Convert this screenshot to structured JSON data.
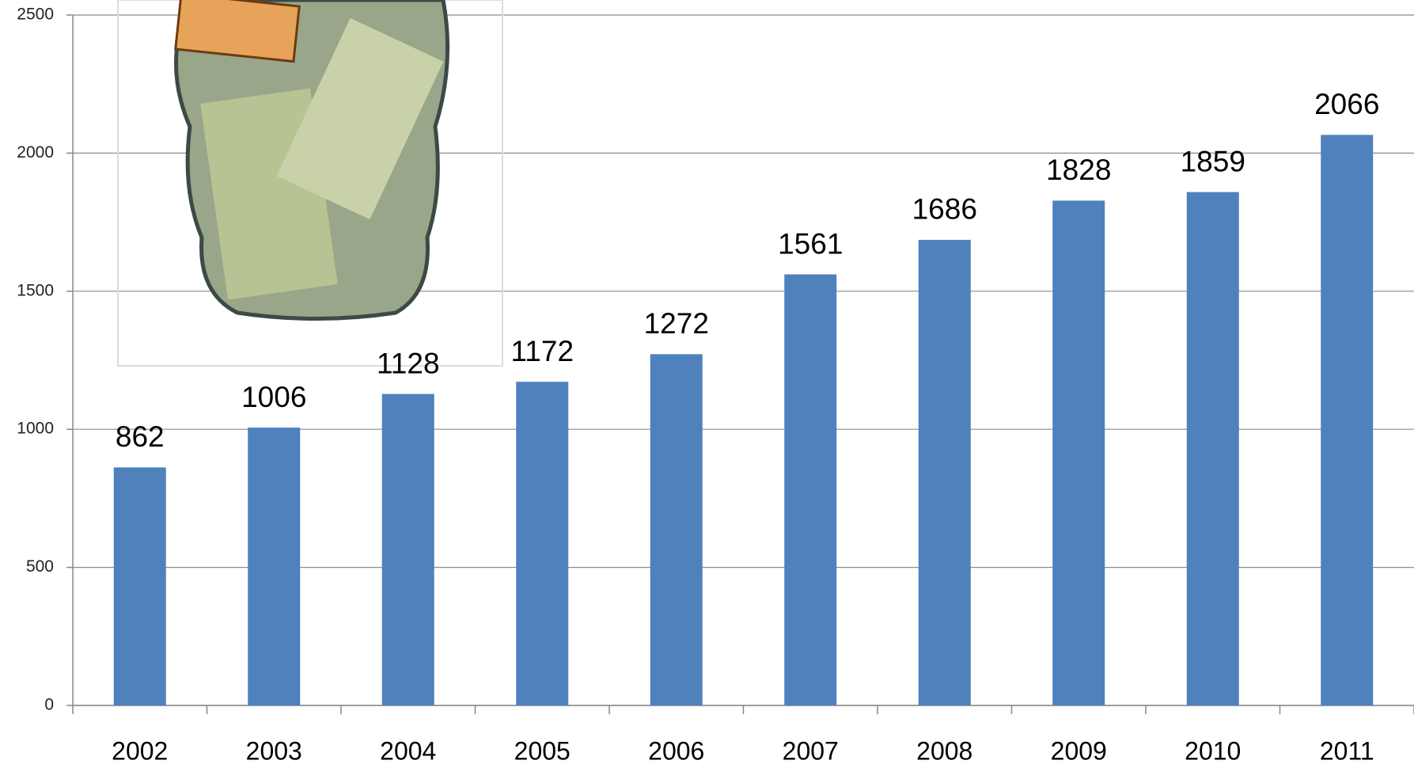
{
  "chart_data": {
    "type": "bar",
    "categories": [
      "2002",
      "2003",
      "2004",
      "2005",
      "2006",
      "2007",
      "2008",
      "2009",
      "2010",
      "2011"
    ],
    "values": [
      862,
      1006,
      1128,
      1172,
      1272,
      1561,
      1686,
      1828,
      1859,
      2066
    ],
    "color": "#4f81bd",
    "ylim": [
      0,
      2500
    ],
    "yticks": [
      0,
      500,
      1000,
      1500,
      2000,
      2500
    ],
    "grid": true
  }
}
